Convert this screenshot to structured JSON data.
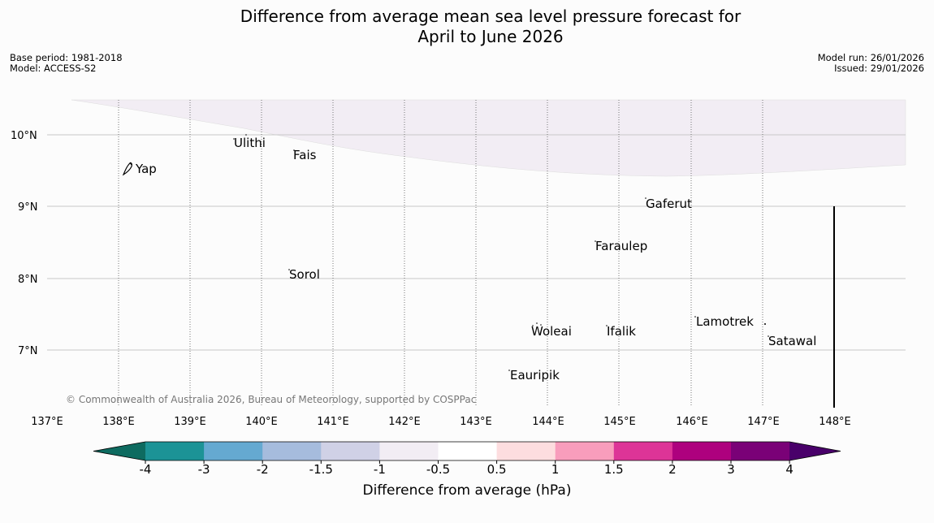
{
  "title": {
    "line1": "Difference from average mean sea level pressure forecast for",
    "line2": "April to June 2026"
  },
  "meta_left": {
    "base_period": "Base period: 1981-2018",
    "model": "Model: ACCESS-S2"
  },
  "meta_right": {
    "model_run": "Model run: 26/01/2026",
    "issued": "Issued: 29/01/2026"
  },
  "map": {
    "lat_labels": [
      "10°N",
      "9°N",
      "8°N",
      "7°N"
    ],
    "lon_labels": [
      "137°E",
      "138°E",
      "139°E",
      "140°E",
      "141°E",
      "142°E",
      "143°E",
      "144°E",
      "145°E",
      "146°E",
      "147°E",
      "148°E"
    ],
    "places": {
      "ulithi": "Ulithi",
      "fais": "Fais",
      "yap": "Yap",
      "gaferut": "Gaferut",
      "faraulep": "Faraulep",
      "sorol": "Sorol",
      "woleai": "Woleai",
      "ifalik": "Ifalik",
      "lamotrek": "Lamotrek",
      "satawal": "Satawal",
      "eauripik": "Eauripik"
    },
    "copyright": "© Commonwealth of Australia 2026, Bureau of Meteorology, supported by COSPPac",
    "shaded_region_color": "#f2edf4"
  },
  "colorbar": {
    "colors": [
      "#0e6b60",
      "#1c9396",
      "#65a9d1",
      "#a6bcdd",
      "#d0d1e6",
      "#f2edf4",
      "#ffffff",
      "#fddddf",
      "#f89dbc",
      "#dd3497",
      "#ae017e",
      "#7a0177",
      "#49006a"
    ],
    "ticks": [
      "-4",
      "-3",
      "-2",
      "-1.5",
      "-1",
      "-0.5",
      "0.5",
      "1",
      "1.5",
      "2",
      "3",
      "4"
    ],
    "label": "Difference from average (hPa)"
  }
}
